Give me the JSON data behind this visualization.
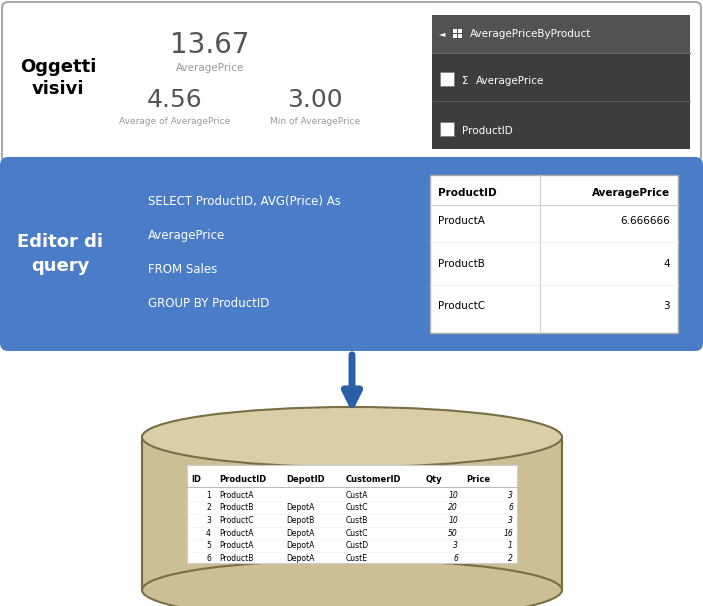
{
  "bg_color": "#ffffff",
  "top_box": {
    "label": "Oggetti\nvisivi",
    "metric1_value": "13.67",
    "metric1_label": "AveragePrice",
    "metric2_value": "4.56",
    "metric2_label": "Average of AveragePrice",
    "metric3_value": "3.00",
    "metric3_label": "Min of AveragePrice",
    "panel_title": "AveragePriceByProduct",
    "panel_item1_sigma": "Σ",
    "panel_item1": "AveragePrice",
    "panel_item2": "ProductID"
  },
  "middle_box": {
    "bg_color": "#4a7cc7",
    "label": "Editor di\nquery",
    "sql_lines": [
      "SELECT ProductID, AVG(Price) As",
      "AveragePrice",
      "FROM Sales",
      "GROUP BY ProductID"
    ],
    "table_headers": [
      "ProductID",
      "AveragePrice"
    ],
    "table_rows": [
      [
        "ProductA",
        "6.666666"
      ],
      [
        "ProductB",
        "4"
      ],
      [
        "ProductC",
        "3"
      ]
    ]
  },
  "db_table_headers": [
    "ID",
    "ProductID",
    "DepotID",
    "CustomerID",
    "Qty",
    "Price"
  ],
  "db_table_rows": [
    [
      "1",
      "ProductA",
      "",
      "CustA",
      "10",
      "3"
    ],
    [
      "2",
      "ProductB",
      "DepotA",
      "CustC",
      "20",
      "6"
    ],
    [
      "3",
      "ProductC",
      "DepotB",
      "CustB",
      "10",
      "3"
    ],
    [
      "4",
      "ProductA",
      "DepotA",
      "CustC",
      "50",
      "16"
    ],
    [
      "5",
      "ProductA",
      "DepotA",
      "CustD",
      "3",
      "1"
    ],
    [
      "6",
      "ProductB",
      "DepotA",
      "CustE",
      "6",
      "2"
    ]
  ],
  "arrow_color": "#2b5fa5",
  "cyl_fill": "#cbbf96",
  "cyl_top": "#d8cfa8",
  "cyl_border": "#7a6e45"
}
